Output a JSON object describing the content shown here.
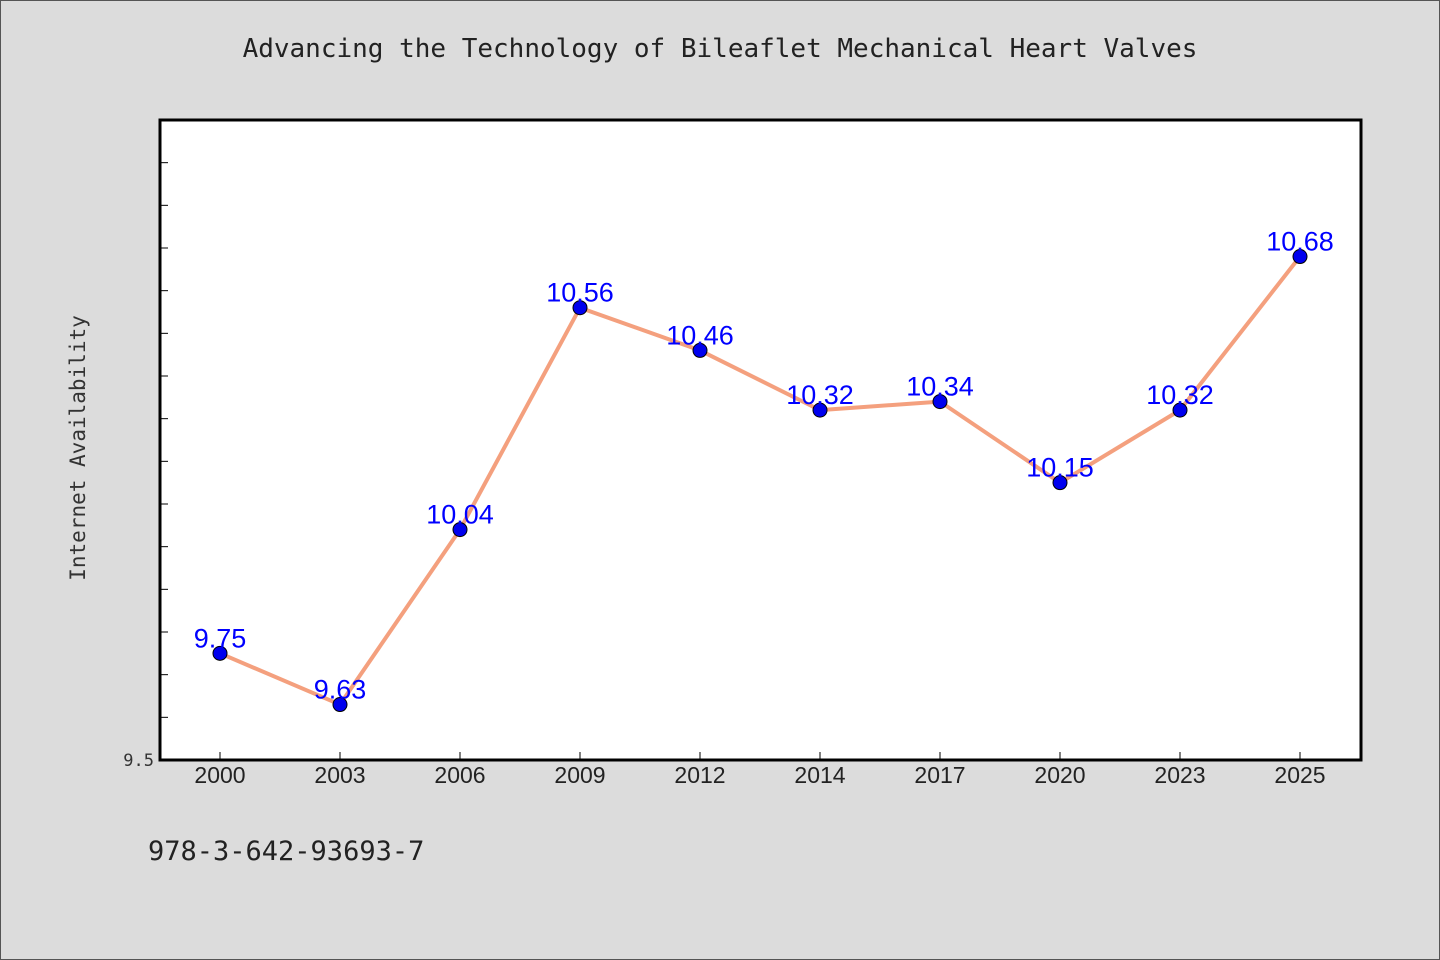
{
  "chart_data": {
    "type": "line",
    "title": "Advancing the Technology of Bileaflet Mechanical Heart Valves",
    "xlabel": "",
    "ylabel": "Internet Availability",
    "categories": [
      "2000",
      "2003",
      "2006",
      "2009",
      "2012",
      "2014",
      "2017",
      "2020",
      "2023",
      "2025"
    ],
    "series": [
      {
        "values": [
          9.75,
          9.63,
          10.04,
          10.56,
          10.46,
          10.32,
          10.34,
          10.15,
          10.32,
          10.68
        ],
        "labels": [
          "9.75",
          "9.63",
          "10.04",
          "10.56",
          "10.46",
          "10.32",
          "10.34",
          "10.15",
          "10.32",
          "10.68"
        ]
      }
    ],
    "ylim": [
      9.5,
      11.0
    ],
    "ytick_label": "9.5",
    "grid": false,
    "line_color": "#f4a07e",
    "marker_color": "#0000ee",
    "label_color": "#0000ff",
    "footer": "978-3-642-93693-7"
  }
}
